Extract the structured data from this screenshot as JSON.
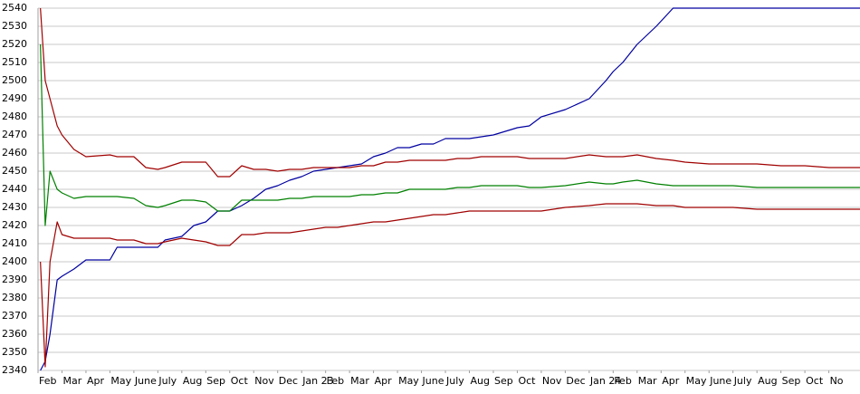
{
  "chart_data": {
    "type": "line",
    "x": [
      0.1,
      0.3,
      0.5,
      0.8,
      1,
      1.5,
      2,
      3,
      3.3,
      4,
      4.5,
      5,
      5.3,
      6,
      6.5,
      7,
      7.5,
      8,
      8.5,
      9,
      9.5,
      10,
      10.5,
      11,
      11.5,
      12,
      12.5,
      13,
      13.5,
      14,
      14.5,
      15,
      15.5,
      16,
      16.5,
      17,
      17.5,
      18,
      18.5,
      19,
      19.5,
      20,
      20.5,
      21,
      22,
      23,
      23.7,
      24,
      24.4,
      25,
      25.8,
      26.5,
      27,
      28,
      29,
      30,
      31,
      32,
      33,
      34.3
    ],
    "series": [
      {
        "color": "#0000a0",
        "values": [
          2340,
          2345,
          2360,
          2390,
          2392,
          2396,
          2401,
          2401,
          2408,
          2408,
          2408,
          2408,
          2412,
          2414,
          2420,
          2422,
          2428,
          2428,
          2431,
          2435,
          2440,
          2442,
          2445,
          2447,
          2450,
          2451,
          2452,
          2453,
          2454,
          2458,
          2460,
          2463,
          2463,
          2465,
          2465,
          2468,
          2468,
          2468,
          2469,
          2470,
          2472,
          2474,
          2475,
          2480,
          2484,
          2490,
          2500,
          2505,
          2510,
          2520,
          2530,
          2540,
          2540,
          2540,
          2540,
          2540,
          2540,
          2540,
          2540,
          2540
        ]
      },
      {
        "color": "#a00000",
        "values": [
          2540,
          2500,
          2490,
          2475,
          2470,
          2462,
          2458,
          2459,
          2458,
          2458,
          2452,
          2451,
          2452,
          2455,
          2455,
          2455,
          2447,
          2447,
          2453,
          2451,
          2451,
          2450,
          2451,
          2451,
          2452,
          2452,
          2452,
          2452,
          2453,
          2453,
          2455,
          2455,
          2456,
          2456,
          2456,
          2456,
          2457,
          2457,
          2458,
          2458,
          2458,
          2458,
          2457,
          2457,
          2457,
          2459,
          2458,
          2458,
          2458,
          2459,
          2457,
          2456,
          2455,
          2454,
          2454,
          2454,
          2453,
          2453,
          2452,
          2452
        ]
      },
      {
        "color": "#008000",
        "values": [
          2520,
          2420,
          2450,
          2440,
          2438,
          2435,
          2436,
          2436,
          2436,
          2435,
          2431,
          2430,
          2431,
          2434,
          2434,
          2433,
          2428,
          2428,
          2434,
          2434,
          2434,
          2434,
          2435,
          2435,
          2436,
          2436,
          2436,
          2436,
          2437,
          2437,
          2438,
          2438,
          2440,
          2440,
          2440,
          2440,
          2441,
          2441,
          2442,
          2442,
          2442,
          2442,
          2441,
          2441,
          2442,
          2444,
          2443,
          2443,
          2444,
          2445,
          2443,
          2442,
          2442,
          2442,
          2442,
          2441,
          2441,
          2441,
          2441,
          2441
        ]
      },
      {
        "color": "#a00000",
        "values": [
          2400,
          2342,
          2400,
          2422,
          2415,
          2413,
          2413,
          2413,
          2412,
          2412,
          2410,
          2410,
          2411,
          2413,
          2412,
          2411,
          2409,
          2409,
          2415,
          2415,
          2416,
          2416,
          2416,
          2417,
          2418,
          2419,
          2419,
          2420,
          2421,
          2422,
          2422,
          2423,
          2424,
          2425,
          2426,
          2426,
          2427,
          2428,
          2428,
          2428,
          2428,
          2428,
          2428,
          2428,
          2430,
          2431,
          2432,
          2432,
          2432,
          2432,
          2431,
          2431,
          2430,
          2430,
          2430,
          2429,
          2429,
          2429,
          2429,
          2429
        ]
      }
    ],
    "xlim": [
      0,
      34.3
    ],
    "xticks": [
      {
        "value": 0,
        "label": "Feb"
      },
      {
        "value": 1,
        "label": "Mar"
      },
      {
        "value": 2,
        "label": "Apr"
      },
      {
        "value": 3,
        "label": "May"
      },
      {
        "value": 4,
        "label": "June"
      },
      {
        "value": 5,
        "label": "July"
      },
      {
        "value": 6,
        "label": "Aug"
      },
      {
        "value": 7,
        "label": "Sep"
      },
      {
        "value": 8,
        "label": "Oct"
      },
      {
        "value": 9,
        "label": "Nov"
      },
      {
        "value": 10,
        "label": "Dec"
      },
      {
        "value": 11,
        "label": "Jan 23"
      },
      {
        "value": 12,
        "label": "Feb"
      },
      {
        "value": 13,
        "label": "Mar"
      },
      {
        "value": 14,
        "label": "Apr"
      },
      {
        "value": 15,
        "label": "May"
      },
      {
        "value": 16,
        "label": "June"
      },
      {
        "value": 17,
        "label": "July"
      },
      {
        "value": 18,
        "label": "Aug"
      },
      {
        "value": 19,
        "label": "Sep"
      },
      {
        "value": 20,
        "label": "Oct"
      },
      {
        "value": 21,
        "label": "Nov"
      },
      {
        "value": 22,
        "label": "Dec"
      },
      {
        "value": 23,
        "label": "Jan 24"
      },
      {
        "value": 24,
        "label": "Feb"
      },
      {
        "value": 25,
        "label": "Mar"
      },
      {
        "value": 26,
        "label": "Apr"
      },
      {
        "value": 27,
        "label": "May"
      },
      {
        "value": 28,
        "label": "June"
      },
      {
        "value": 29,
        "label": "July"
      },
      {
        "value": 30,
        "label": "Aug"
      },
      {
        "value": 31,
        "label": "Sep"
      },
      {
        "value": 32,
        "label": "Oct"
      },
      {
        "value": 33,
        "label": "No"
      }
    ],
    "ylim": [
      2340,
      2540
    ],
    "yticks": [
      2340,
      2350,
      2360,
      2370,
      2380,
      2390,
      2400,
      2410,
      2420,
      2430,
      2440,
      2450,
      2460,
      2470,
      2480,
      2490,
      2500,
      2510,
      2520,
      2530,
      2540
    ],
    "grid": true
  }
}
